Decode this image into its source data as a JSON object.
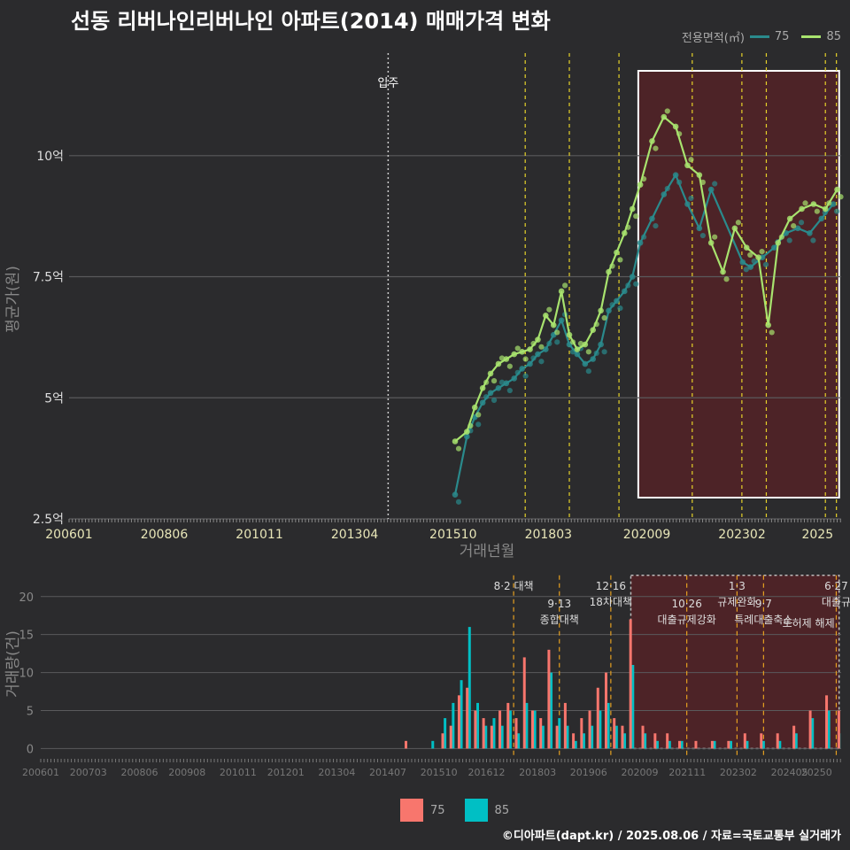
{
  "title": "선동 리버나인리버나인 아파트(2014) 매매가격 변화",
  "legend_top": {
    "label": "전용면적(㎡)",
    "items": [
      {
        "name": "75",
        "color": "#2a8a8c"
      },
      {
        "name": "85",
        "color": "#a8e36e"
      }
    ]
  },
  "legend_bottom": {
    "items": [
      {
        "name": "75",
        "color": "#f8766d"
      },
      {
        "name": "85",
        "color": "#00bfc4"
      }
    ]
  },
  "footer": "©디아파트(dapt.kr) / 2025.08.06 / 자료=국토교통부 실거래가",
  "chart_data": [
    {
      "type": "line",
      "xlabel": "거래년월",
      "ylabel": "평균가(원)",
      "x_ticks": [
        "200601",
        "200806",
        "201011",
        "201304",
        "201510",
        "201803",
        "202009",
        "202302",
        "2025"
      ],
      "y_ticks": [
        {
          "v": 2.5,
          "label": "2.5억"
        },
        {
          "v": 5,
          "label": "5억"
        },
        {
          "v": 7.5,
          "label": "7.5억"
        },
        {
          "v": 10,
          "label": "10억"
        }
      ],
      "ylim": [
        2.5,
        12.3
      ],
      "xlim": [
        2006.0,
        2025.6
      ],
      "move_in": {
        "x": 2014.1,
        "label": "입주"
      },
      "policy_lines": [
        2017.58,
        2018.7,
        2019.96,
        2021.82,
        2023.08,
        2023.7,
        2025.2,
        2025.48
      ],
      "highlight_range": [
        2020.45,
        2025.55
      ],
      "series": [
        {
          "name": "75",
          "color": "#2a8a8c",
          "x": [
            2015.8,
            2016.1,
            2016.3,
            2016.5,
            2016.7,
            2016.9,
            2017.1,
            2017.3,
            2017.5,
            2017.7,
            2017.9,
            2018.1,
            2018.3,
            2018.5,
            2018.7,
            2018.9,
            2019.1,
            2019.3,
            2019.5,
            2019.7,
            2019.9,
            2020.1,
            2020.3,
            2020.5,
            2020.8,
            2021.1,
            2021.4,
            2021.7,
            2022.0,
            2022.3,
            2023.1,
            2023.3,
            2023.6,
            2023.9,
            2024.2,
            2024.5,
            2024.8,
            2025.1,
            2025.4
          ],
          "values": [
            3.0,
            4.2,
            4.6,
            4.9,
            5.1,
            5.2,
            5.3,
            5.4,
            5.6,
            5.7,
            5.9,
            6.0,
            6.3,
            6.6,
            6.1,
            5.9,
            5.7,
            5.8,
            6.1,
            6.8,
            7.0,
            7.2,
            7.5,
            8.2,
            8.7,
            9.2,
            9.6,
            9.0,
            8.5,
            9.3,
            7.8,
            7.7,
            7.9,
            8.1,
            8.4,
            8.5,
            8.4,
            8.7,
            9.0
          ]
        },
        {
          "name": "85",
          "color": "#a8e36e",
          "x": [
            2015.8,
            2016.1,
            2016.3,
            2016.5,
            2016.7,
            2016.9,
            2017.1,
            2017.3,
            2017.5,
            2017.7,
            2017.9,
            2018.1,
            2018.3,
            2018.5,
            2018.7,
            2018.9,
            2019.1,
            2019.3,
            2019.5,
            2019.7,
            2019.9,
            2020.1,
            2020.3,
            2020.5,
            2020.8,
            2021.1,
            2021.4,
            2021.7,
            2022.0,
            2022.3,
            2022.6,
            2022.9,
            2023.2,
            2023.5,
            2023.75,
            2024.0,
            2024.3,
            2024.6,
            2024.9,
            2025.2,
            2025.5
          ],
          "values": [
            4.1,
            4.3,
            4.8,
            5.2,
            5.5,
            5.7,
            5.8,
            5.9,
            5.95,
            6.0,
            6.2,
            6.7,
            6.5,
            7.2,
            6.3,
            6.0,
            6.1,
            6.4,
            6.8,
            7.6,
            8.0,
            8.4,
            8.9,
            9.4,
            10.3,
            10.8,
            10.6,
            9.8,
            9.6,
            8.2,
            7.6,
            8.5,
            8.1,
            7.9,
            6.5,
            8.2,
            8.7,
            8.9,
            9.0,
            8.9,
            9.3
          ]
        }
      ]
    },
    {
      "type": "bar",
      "ylabel": "거래량(건)",
      "x_ticks": [
        "200601",
        "200703",
        "200806",
        "200908",
        "201011",
        "201201",
        "201304",
        "201407",
        "201510",
        "201612",
        "201803",
        "201906",
        "202009",
        "202111",
        "202302",
        "202405",
        "20250"
      ],
      "y_ticks": [
        0,
        5,
        10,
        15,
        20
      ],
      "ylim": [
        -1,
        23
      ],
      "policies": [
        {
          "x": 2017.58,
          "date": "8·2 대책",
          "name": ""
        },
        {
          "x": 2018.7,
          "date": "9·13",
          "name": "종합대책"
        },
        {
          "x": 2019.96,
          "date": "12·16",
          "name": "18차대책"
        },
        {
          "x": 2021.82,
          "date": "10·26",
          "name": "대출규제강화"
        },
        {
          "x": 2023.05,
          "date": "1·3",
          "name": "규제완화"
        },
        {
          "x": 2023.7,
          "date": "9·7",
          "name": "특례대출축소"
        },
        {
          "x": 2025.48,
          "date": "6·27",
          "name": "대출규"
        }
      ],
      "extra_labels": [
        "토허제 해제"
      ],
      "series": [
        {
          "name": "75",
          "color": "#f8766d",
          "x": [
            2014.9,
            2015.8,
            2016.0,
            2016.2,
            2016.4,
            2016.6,
            2016.8,
            2017.0,
            2017.2,
            2017.4,
            2017.6,
            2017.8,
            2018.0,
            2018.2,
            2018.4,
            2018.6,
            2018.8,
            2019.0,
            2019.2,
            2019.4,
            2019.6,
            2019.8,
            2020.0,
            2020.2,
            2020.4,
            2020.7,
            2021.0,
            2021.3,
            2021.6,
            2022.0,
            2022.4,
            2022.8,
            2023.2,
            2023.6,
            2024.0,
            2024.4,
            2024.8,
            2025.2,
            2025.5
          ],
          "values": [
            1,
            2,
            3,
            7,
            8,
            5,
            4,
            3,
            5,
            6,
            4,
            12,
            5,
            4,
            13,
            3,
            6,
            2,
            4,
            5,
            8,
            10,
            4,
            3,
            17,
            3,
            2,
            2,
            1,
            1,
            1,
            1,
            2,
            2,
            2,
            3,
            5,
            7,
            5
          ]
        },
        {
          "name": "85",
          "color": "#00bfc4",
          "x": [
            2015.6,
            2015.9,
            2016.1,
            2016.3,
            2016.5,
            2016.7,
            2016.9,
            2017.1,
            2017.3,
            2017.5,
            2017.7,
            2017.9,
            2018.1,
            2018.3,
            2018.5,
            2018.7,
            2018.9,
            2019.1,
            2019.3,
            2019.5,
            2019.7,
            2019.9,
            2020.1,
            2020.3,
            2020.5,
            2020.8,
            2021.1,
            2021.4,
            2021.7,
            2022.1,
            2022.5,
            2022.9,
            2023.3,
            2023.7,
            2024.1,
            2024.5,
            2024.9,
            2025.3,
            2025.55
          ],
          "values": [
            1,
            4,
            6,
            9,
            16,
            6,
            3,
            4,
            3,
            5,
            2,
            6,
            5,
            3,
            10,
            4,
            3,
            1,
            2,
            3,
            5,
            6,
            3,
            2,
            11,
            2,
            1,
            1,
            1,
            0,
            1,
            1,
            1,
            1,
            1,
            2,
            4,
            5,
            2
          ]
        }
      ]
    }
  ]
}
